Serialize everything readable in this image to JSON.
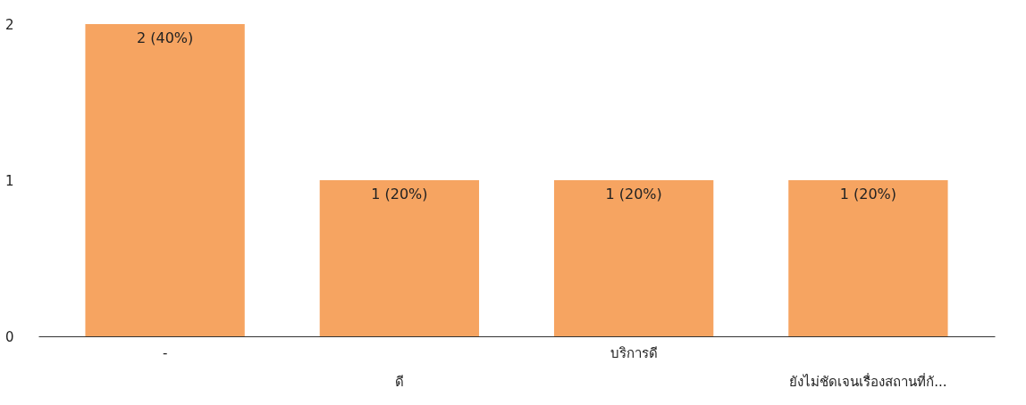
{
  "chart_data": {
    "type": "bar",
    "categories": [
      "-",
      "ดี",
      "บริการดี",
      "ยังไม่ชัดเจนเรื่องสถานที่กั..."
    ],
    "values": [
      2,
      1,
      1,
      1
    ],
    "color": "#f6a461",
    "value_labels": [
      "2 (40%)",
      "1 (20%)",
      "1 (20%)",
      "1 (20%)"
    ],
    "ylim": [
      0,
      2
    ],
    "yticks": [
      0,
      1,
      2
    ],
    "grid": false
  }
}
